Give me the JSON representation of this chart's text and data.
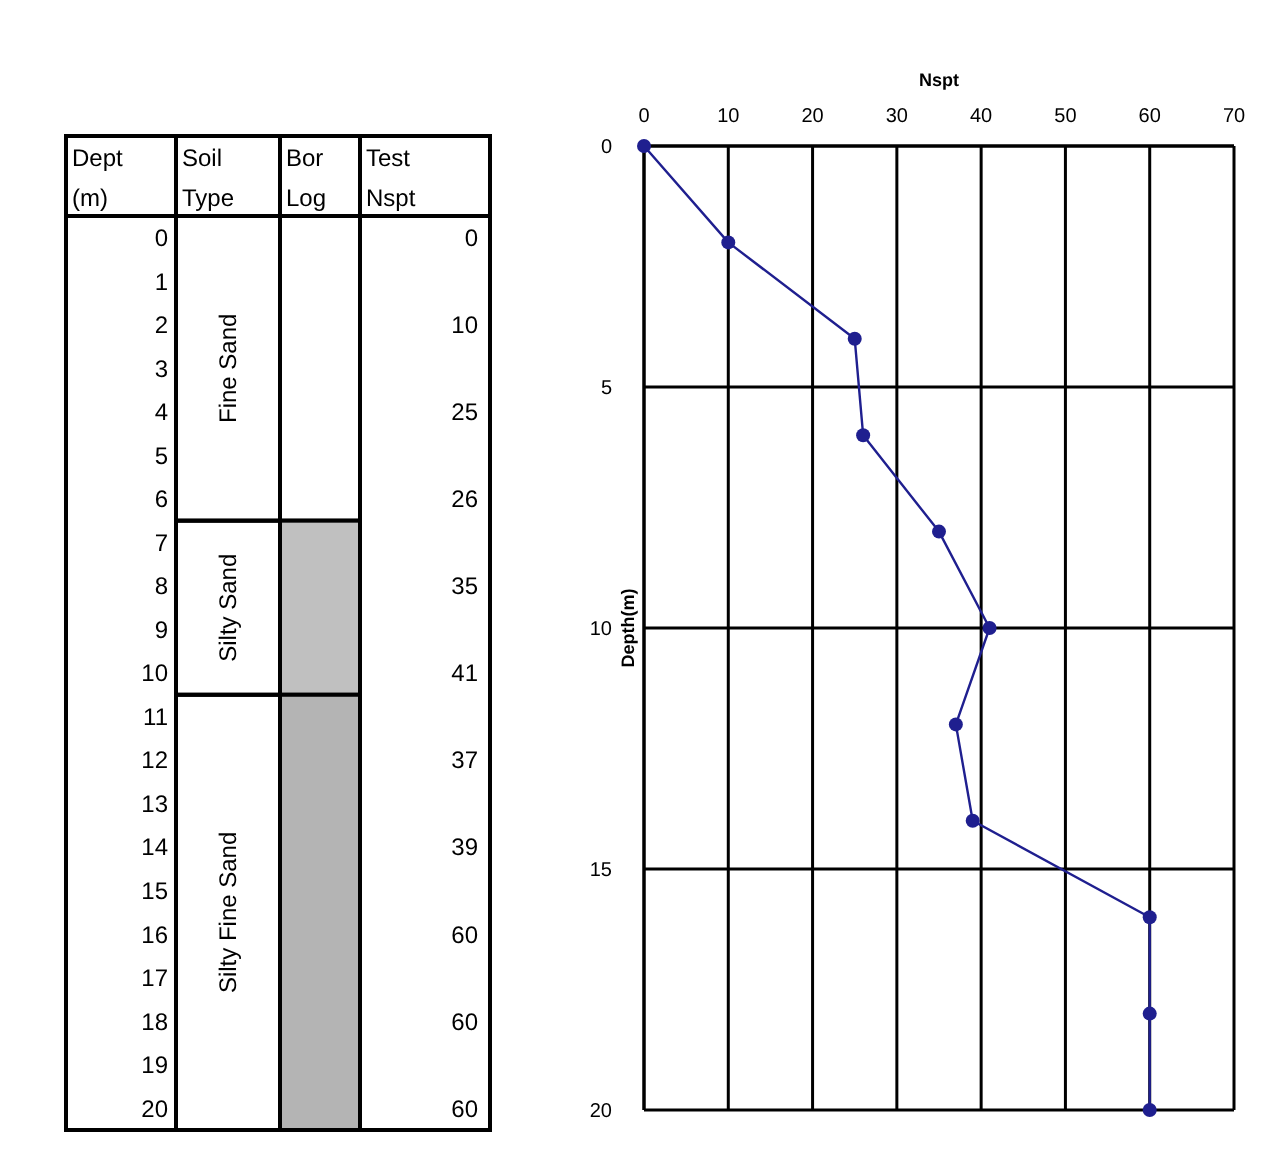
{
  "chart_data": [
    {
      "type": "bar",
      "categories": [
        null
      ],
      "values": [
        null
      ],
      "annotations": [
        "Dept",
        "(m)",
        "Soil",
        "Type",
        "Bor",
        "Log",
        "Test",
        "Nspt",
        "0",
        "10",
        "25",
        "26",
        "35",
        "41",
        "37",
        "39",
        "60",
        "60",
        "60"
      ],
      "ylim": [
        20.5,
        -0.5
      ],
      "yticks": [
        0,
        1,
        2,
        3,
        4,
        5,
        6,
        7,
        8,
        9,
        10,
        11,
        12,
        13,
        14,
        15,
        16,
        17,
        18,
        19,
        20
      ],
      "bands": [
        {
          "axis": "y",
          "from": -0.5,
          "to": 6.5,
          "label": "Fine Sand",
          "color": "#ffffff"
        },
        {
          "axis": "y",
          "from": 6.5,
          "to": 10.5,
          "label": "Silty Sand",
          "color": "#c0c0c0"
        },
        {
          "axis": "y",
          "from": 10.5,
          "to": 20.5,
          "label": "Silty Fine Sand",
          "color": "#b4b4b4"
        }
      ]
    },
    {
      "type": "line",
      "orientation": "horizontal",
      "xlabel": "Nspt",
      "ylabel": "Depth(m)",
      "xlim": [
        0,
        70
      ],
      "xticks": [
        0,
        10,
        20,
        30,
        40,
        50,
        60,
        70
      ],
      "ylim": [
        20,
        0
      ],
      "yticks": [
        0,
        5,
        10,
        15,
        20
      ],
      "series": [
        {
          "color": "#1f1f8f",
          "x": [
            0,
            2,
            4,
            6,
            8,
            10,
            12,
            14,
            16,
            18,
            20
          ],
          "values": [
            0,
            10,
            25,
            26,
            35,
            41,
            37,
            39,
            60,
            60,
            60
          ]
        }
      ],
      "grid": true,
      "marker": "circle",
      "line_style": "solid"
    }
  ]
}
